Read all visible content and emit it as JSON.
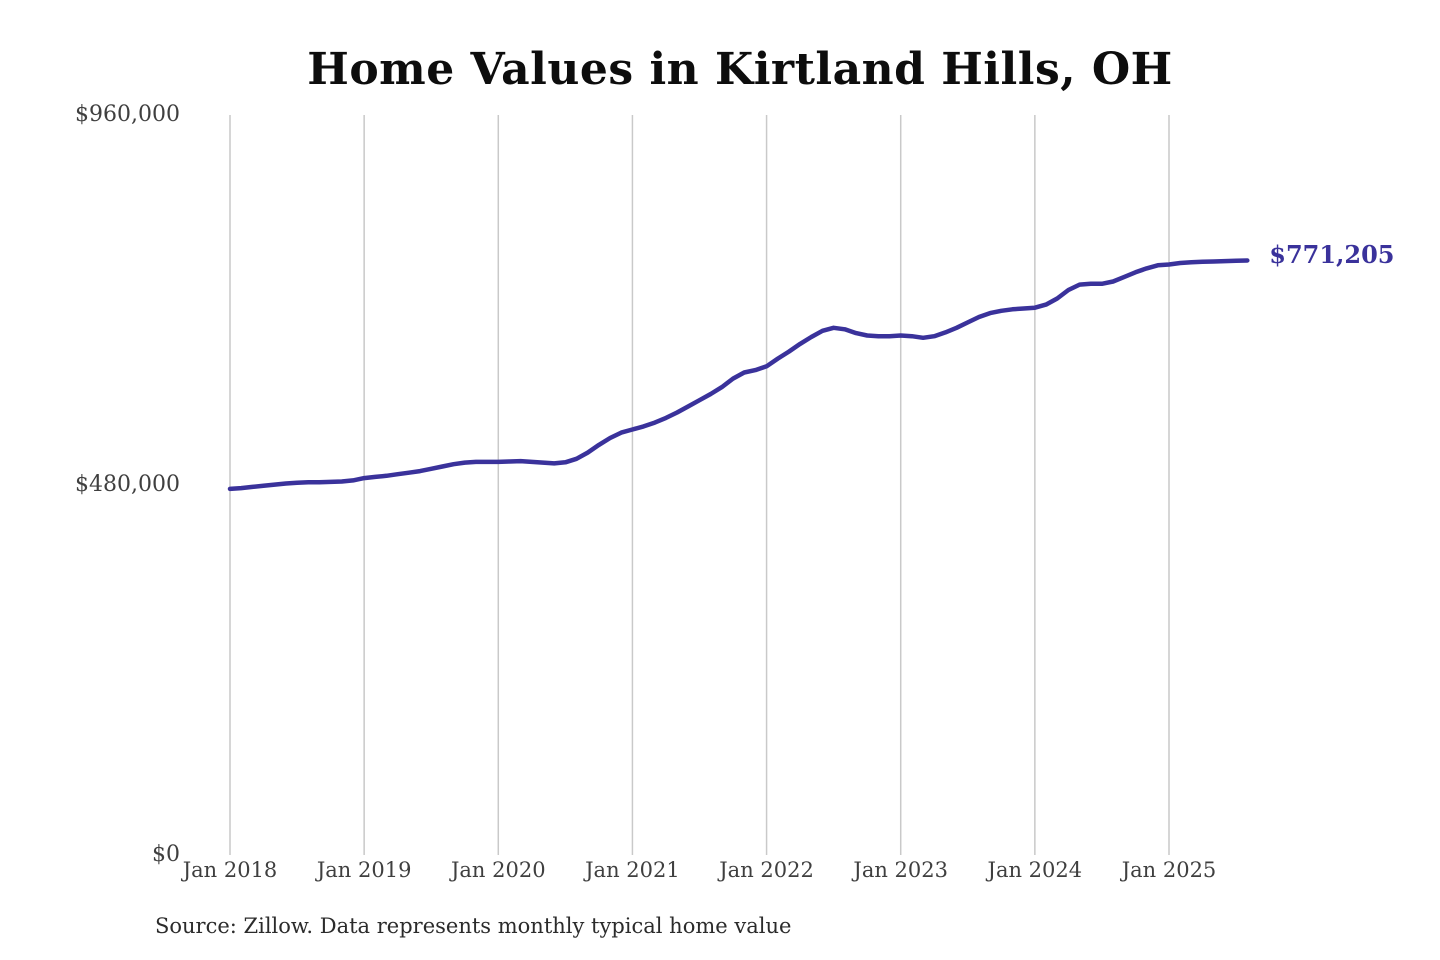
{
  "chart": {
    "title": "Home Values in Kirtland Hills, OH",
    "source": "Source: Zillow. Data represents monthly typical home value",
    "end_label": "$771,205",
    "colors": {
      "line": "#3a329b",
      "grid": "#c9c9c9",
      "axis_text": "#3f3f3f",
      "title_text": "#0d0d0d",
      "background": "#ffffff"
    }
  },
  "chart_data": {
    "type": "line",
    "title": "Home Values in Kirtland Hills, OH",
    "series_name": "Monthly typical home value",
    "x": [
      "2018-01",
      "2018-02",
      "2018-03",
      "2018-04",
      "2018-05",
      "2018-06",
      "2018-07",
      "2018-08",
      "2018-09",
      "2018-10",
      "2018-11",
      "2018-12",
      "2019-01",
      "2019-02",
      "2019-03",
      "2019-04",
      "2019-05",
      "2019-06",
      "2019-07",
      "2019-08",
      "2019-09",
      "2019-10",
      "2019-11",
      "2019-12",
      "2020-01",
      "2020-02",
      "2020-03",
      "2020-04",
      "2020-05",
      "2020-06",
      "2020-07",
      "2020-08",
      "2020-09",
      "2020-10",
      "2020-11",
      "2020-12",
      "2021-01",
      "2021-02",
      "2021-03",
      "2021-04",
      "2021-05",
      "2021-06",
      "2021-07",
      "2021-08",
      "2021-09",
      "2021-10",
      "2021-11",
      "2021-12",
      "2022-01",
      "2022-02",
      "2022-03",
      "2022-04",
      "2022-05",
      "2022-06",
      "2022-07",
      "2022-08",
      "2022-09",
      "2022-10",
      "2022-11",
      "2022-12",
      "2023-01",
      "2023-02",
      "2023-03",
      "2023-04",
      "2023-05",
      "2023-06",
      "2023-07",
      "2023-08",
      "2023-09",
      "2023-10",
      "2023-11",
      "2023-12",
      "2024-01",
      "2024-02",
      "2024-03",
      "2024-04",
      "2024-05",
      "2024-06",
      "2024-07",
      "2024-08",
      "2024-09",
      "2024-10",
      "2024-11",
      "2024-12",
      "2025-01",
      "2025-02",
      "2025-03",
      "2025-04",
      "2025-05",
      "2025-06",
      "2025-07",
      "2025-08"
    ],
    "values": [
      475000,
      476000,
      477500,
      479000,
      480500,
      482000,
      483000,
      483500,
      483500,
      484000,
      484500,
      486000,
      489000,
      490500,
      492000,
      494000,
      496000,
      498000,
      501000,
      504000,
      507000,
      509000,
      510000,
      510000,
      510000,
      510500,
      511000,
      510000,
      509000,
      508000,
      509500,
      514000,
      522000,
      532000,
      541000,
      548000,
      552000,
      556000,
      561000,
      567000,
      574000,
      582000,
      590000,
      598000,
      607000,
      618000,
      626000,
      629000,
      634000,
      644000,
      653000,
      663000,
      672000,
      680000,
      684000,
      682000,
      677000,
      674000,
      673000,
      673000,
      674000,
      673000,
      671000,
      673000,
      678000,
      684000,
      691000,
      698000,
      703000,
      706000,
      708000,
      709000,
      710000,
      714000,
      722000,
      733000,
      740000,
      741000,
      741000,
      744000,
      750000,
      756000,
      761000,
      765000,
      766000,
      768000,
      769000,
      769500,
      770000,
      770500,
      771000,
      771205
    ],
    "ylim": [
      0,
      960000
    ],
    "y_ticks": [
      {
        "value": 0,
        "label": "$0"
      },
      {
        "value": 480000,
        "label": "$480,000"
      },
      {
        "value": 960000,
        "label": "$960,000"
      }
    ],
    "x_ticks": [
      {
        "month_index": 0,
        "label": "Jan 2018"
      },
      {
        "month_index": 12,
        "label": "Jan 2019"
      },
      {
        "month_index": 24,
        "label": "Jan 2020"
      },
      {
        "month_index": 36,
        "label": "Jan 2021"
      },
      {
        "month_index": 48,
        "label": "Jan 2022"
      },
      {
        "month_index": 60,
        "label": "Jan 2023"
      },
      {
        "month_index": 72,
        "label": "Jan 2024"
      },
      {
        "month_index": 84,
        "label": "Jan 2025"
      }
    ],
    "grid": "vertical-only",
    "legend": "none",
    "end_annotation": "$771,205"
  }
}
